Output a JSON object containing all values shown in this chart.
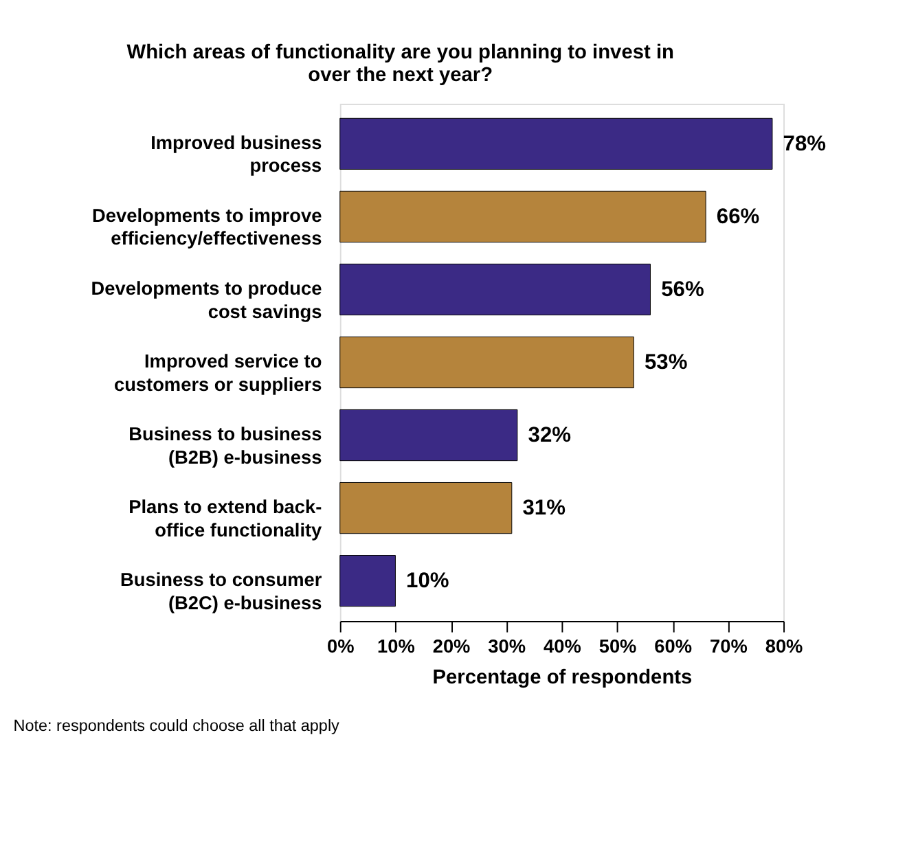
{
  "chart_data": {
    "type": "bar",
    "orientation": "horizontal",
    "title": "Which areas of functionality are you planning to invest in over the next year?",
    "categories": [
      "Improved business process",
      "Developments to improve efficiency/effectiveness",
      "Developments to produce cost savings",
      "Improved service to customers or suppliers",
      "Business to business (B2B) e-business",
      "Plans to extend back-office functionality",
      "Business to consumer (B2C) e-business"
    ],
    "values": [
      78,
      66,
      56,
      53,
      32,
      31,
      10
    ],
    "colors": [
      "#3b2a85",
      "#b5843c",
      "#3b2a85",
      "#b5843c",
      "#3b2a85",
      "#b5843c",
      "#3b2a85"
    ],
    "value_labels": [
      "78%",
      "66%",
      "56%",
      "53%",
      "32%",
      "31%",
      "10%"
    ],
    "xlim": [
      0,
      80
    ],
    "xticks": [
      {
        "value": 0,
        "label": "0%"
      },
      {
        "value": 10,
        "label": "10%"
      },
      {
        "value": 20,
        "label": "20%"
      },
      {
        "value": 30,
        "label": "30%"
      },
      {
        "value": 40,
        "label": "40%"
      },
      {
        "value": 50,
        "label": "50%"
      },
      {
        "value": 60,
        "label": "60%"
      },
      {
        "value": 70,
        "label": "70%"
      },
      {
        "value": 80,
        "label": "80%"
      }
    ],
    "xlabel": "Percentage of respondents",
    "annotations": [
      "Note: respondents could choose all that apply"
    ]
  }
}
